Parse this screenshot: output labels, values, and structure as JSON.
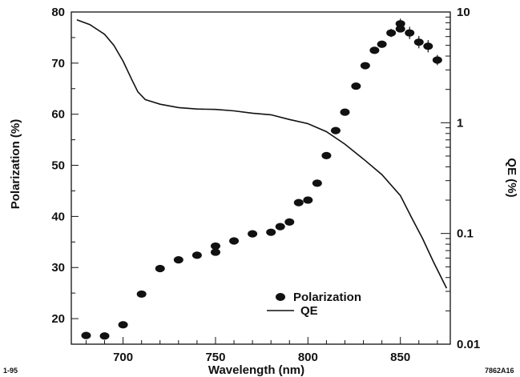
{
  "chart_data": {
    "type": "scatter",
    "xlabel": "Wavelength  (nm)",
    "ylabel": "Polarization  (%)",
    "y2label": "QE  (%)",
    "xlim": [
      672,
      877
    ],
    "ylim": [
      15,
      80
    ],
    "y2lim": [
      0.01,
      10
    ],
    "y2scale": "log",
    "xticks": [
      700,
      750,
      800,
      850
    ],
    "yticks": [
      20,
      30,
      40,
      50,
      60,
      70,
      80
    ],
    "y2ticks": [
      {
        "value": 0.01,
        "label": "0.01"
      },
      {
        "value": 0.1,
        "label": "0.1"
      },
      {
        "value": 1,
        "label": "1"
      },
      {
        "value": 10,
        "label": "10"
      }
    ],
    "legend": {
      "position": "bottom-center"
    },
    "series": [
      {
        "name": "Polarization",
        "kind": "scatter",
        "axis": "left",
        "points": [
          {
            "x": 680,
            "y": 16.7,
            "err": 0.3
          },
          {
            "x": 690,
            "y": 16.6,
            "err": 0.3
          },
          {
            "x": 700,
            "y": 18.8,
            "err": 0.3
          },
          {
            "x": 710,
            "y": 24.8,
            "err": 0.5
          },
          {
            "x": 720,
            "y": 29.8,
            "err": 0.3
          },
          {
            "x": 730,
            "y": 31.5,
            "err": 0.3
          },
          {
            "x": 740,
            "y": 32.4,
            "err": 0.5
          },
          {
            "x": 750,
            "y": 34.2,
            "err": 0.6
          },
          {
            "x": 750,
            "y": 33.0,
            "err": 0.3
          },
          {
            "x": 760,
            "y": 35.2,
            "err": 0.3
          },
          {
            "x": 770,
            "y": 36.6,
            "err": 0.5
          },
          {
            "x": 780,
            "y": 36.9,
            "err": 0.5
          },
          {
            "x": 785,
            "y": 38.0,
            "err": 0.3
          },
          {
            "x": 790,
            "y": 38.9,
            "err": 0.3
          },
          {
            "x": 795,
            "y": 42.7,
            "err": 0.3
          },
          {
            "x": 800,
            "y": 43.2,
            "err": 0.5
          },
          {
            "x": 805,
            "y": 46.5,
            "err": 0.3
          },
          {
            "x": 810,
            "y": 51.9,
            "err": 0.3
          },
          {
            "x": 815,
            "y": 56.8,
            "err": 0.3
          },
          {
            "x": 820,
            "y": 60.4,
            "err": 0.3
          },
          {
            "x": 826,
            "y": 65.5,
            "err": 0.3
          },
          {
            "x": 831,
            "y": 69.5,
            "err": 0.3
          },
          {
            "x": 836,
            "y": 72.5,
            "err": 0.5
          },
          {
            "x": 840,
            "y": 73.7,
            "err": 0.5
          },
          {
            "x": 845,
            "y": 75.9,
            "err": 0.8
          },
          {
            "x": 850,
            "y": 77.7,
            "err": 1.0
          },
          {
            "x": 850,
            "y": 76.7,
            "err": 0.6
          },
          {
            "x": 855,
            "y": 75.9,
            "err": 1.2
          },
          {
            "x": 860,
            "y": 74.1,
            "err": 1.2
          },
          {
            "x": 865,
            "y": 73.3,
            "err": 1.2
          },
          {
            "x": 870,
            "y": 70.6,
            "err": 1.0
          }
        ]
      },
      {
        "name": "QE",
        "kind": "line",
        "axis": "right",
        "x": [
          675,
          682,
          690,
          695,
          700,
          705,
          708,
          712,
          720,
          730,
          740,
          750,
          760,
          770,
          780,
          790,
          800,
          810,
          820,
          830,
          840,
          850,
          856,
          862,
          868,
          875
        ],
        "y": [
          8.5,
          7.7,
          6.3,
          5.0,
          3.6,
          2.4,
          1.9,
          1.62,
          1.47,
          1.37,
          1.33,
          1.32,
          1.28,
          1.22,
          1.18,
          1.07,
          0.98,
          0.83,
          0.64,
          0.47,
          0.34,
          0.22,
          0.14,
          0.09,
          0.055,
          0.032
        ]
      }
    ],
    "corner_left": "1-95",
    "corner_right": "7862A16"
  }
}
